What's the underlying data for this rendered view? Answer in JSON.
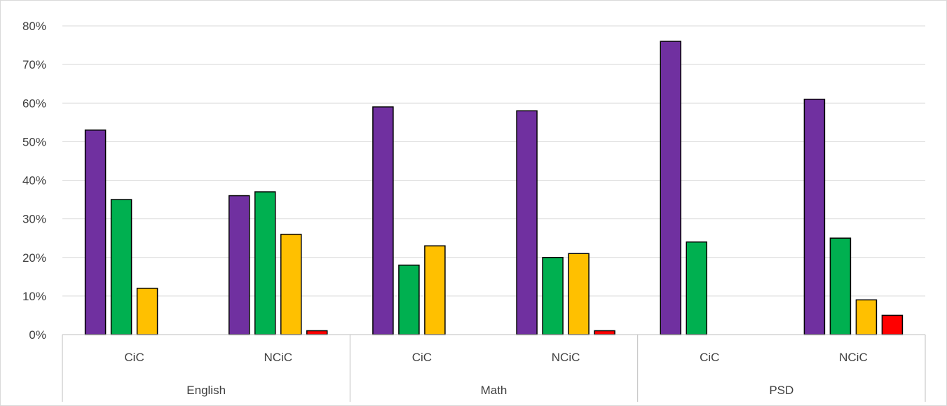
{
  "chart_data": {
    "type": "bar",
    "title": "",
    "xlabel": "",
    "ylabel": "",
    "ylim": [
      0,
      80
    ],
    "y_ticks": [
      "0%",
      "10%",
      "20%",
      "30%",
      "40%",
      "50%",
      "60%",
      "70%",
      "80%"
    ],
    "grid": true,
    "legend": "none",
    "groups": [
      {
        "name": "English",
        "categories": [
          "CiC",
          "NCiC"
        ]
      },
      {
        "name": "Math",
        "categories": [
          "CiC",
          "NCiC"
        ]
      },
      {
        "name": "PSD",
        "categories": [
          "CiC",
          "NCiC"
        ]
      }
    ],
    "categories": [
      "English CiC",
      "English NCiC",
      "Math CiC",
      "Math NCiC",
      "PSD CiC",
      "PSD NCiC"
    ],
    "series": [
      {
        "color": "#7030A0",
        "values": [
          53,
          36,
          59,
          58,
          76,
          61
        ]
      },
      {
        "color": "#00B050",
        "values": [
          35,
          37,
          18,
          20,
          24,
          25
        ]
      },
      {
        "color": "#FFC000",
        "values": [
          12,
          26,
          23,
          21,
          0,
          9
        ]
      },
      {
        "color": "#FF0000",
        "values": [
          0,
          1,
          0,
          1,
          0,
          5
        ]
      }
    ]
  }
}
